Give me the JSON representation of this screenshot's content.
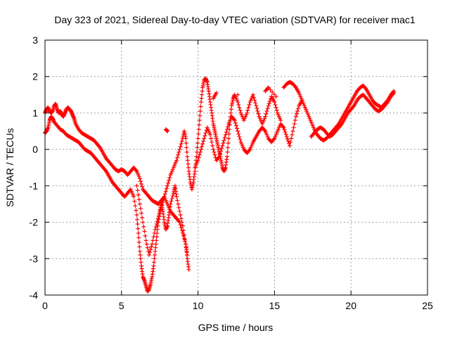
{
  "chart_data": {
    "type": "scatter",
    "title": "Day 323 of 2021, Sidereal Day-to-day VTEC variation (SDTVAR) for receiver mac1",
    "xlabel": "GPS time / hours",
    "ylabel": "SDTVAR / TECUs",
    "xlim": [
      0,
      25
    ],
    "ylim": [
      -4,
      3
    ],
    "xticks": [
      "0",
      "5",
      "10",
      "15",
      "20",
      "25"
    ],
    "yticks": [
      "-4",
      "-3",
      "-2",
      "-1",
      "0",
      "1",
      "2",
      "3"
    ],
    "grid": true,
    "marker": "+",
    "color": "#ff0000",
    "series": [
      {
        "points": [
          [
            0.0,
            1.0
          ],
          [
            0.1,
            1.1
          ],
          [
            0.2,
            1.15
          ],
          [
            0.3,
            1.05
          ],
          [
            0.4,
            1.0
          ],
          [
            0.5,
            1.05
          ],
          [
            0.6,
            1.2
          ],
          [
            0.7,
            1.25
          ],
          [
            0.8,
            1.1
          ],
          [
            0.9,
            1.0
          ],
          [
            1.0,
            1.05
          ],
          [
            1.1,
            0.95
          ],
          [
            1.2,
            0.9
          ],
          [
            1.3,
            1.0
          ],
          [
            1.4,
            1.1
          ],
          [
            1.5,
            1.15
          ],
          [
            1.6,
            1.1
          ],
          [
            1.7,
            1.05
          ],
          [
            1.8,
            0.95
          ],
          [
            1.9,
            0.85
          ],
          [
            2.0,
            0.7
          ],
          [
            2.2,
            0.55
          ],
          [
            2.4,
            0.45
          ],
          [
            2.6,
            0.4
          ],
          [
            2.8,
            0.35
          ],
          [
            3.0,
            0.3
          ],
          [
            3.2,
            0.25
          ],
          [
            3.4,
            0.15
          ],
          [
            3.6,
            0.05
          ],
          [
            3.8,
            -0.1
          ],
          [
            4.0,
            -0.25
          ],
          [
            4.2,
            -0.35
          ],
          [
            4.4,
            -0.45
          ],
          [
            4.6,
            -0.55
          ],
          [
            4.8,
            -0.6
          ],
          [
            5.0,
            -0.55
          ],
          [
            5.2,
            -0.6
          ],
          [
            5.4,
            -0.7
          ],
          [
            5.6,
            -0.6
          ],
          [
            5.8,
            -0.5
          ],
          [
            6.0,
            -0.6
          ],
          [
            6.2,
            -0.8
          ],
          [
            6.4,
            -1.1
          ],
          [
            6.6,
            -1.2
          ],
          [
            6.8,
            -1.3
          ],
          [
            7.0,
            -1.4
          ],
          [
            7.2,
            -1.45
          ],
          [
            7.4,
            -1.5
          ],
          [
            7.6,
            -1.4
          ],
          [
            7.8,
            -1.3
          ],
          [
            8.0,
            -1.5
          ],
          [
            8.2,
            -1.7
          ],
          [
            8.4,
            -1.8
          ],
          [
            8.6,
            -1.9
          ],
          [
            8.8,
            -2.0
          ],
          [
            9.0,
            -2.3
          ],
          [
            9.2,
            -2.6
          ],
          [
            9.3,
            -2.9
          ]
        ]
      },
      {
        "points": [
          [
            0.0,
            0.45
          ],
          [
            0.1,
            0.5
          ],
          [
            0.2,
            0.6
          ],
          [
            0.3,
            0.8
          ],
          [
            0.4,
            0.9
          ],
          [
            0.5,
            0.85
          ],
          [
            0.6,
            0.75
          ],
          [
            0.8,
            0.65
          ],
          [
            1.0,
            0.55
          ],
          [
            1.2,
            0.5
          ],
          [
            1.4,
            0.4
          ],
          [
            1.6,
            0.35
          ],
          [
            1.8,
            0.3
          ],
          [
            2.0,
            0.25
          ],
          [
            2.2,
            0.2
          ],
          [
            2.4,
            0.1
          ],
          [
            2.6,
            0.0
          ],
          [
            2.8,
            -0.05
          ],
          [
            3.0,
            -0.1
          ],
          [
            3.2,
            -0.2
          ],
          [
            3.4,
            -0.3
          ],
          [
            3.6,
            -0.4
          ],
          [
            3.8,
            -0.5
          ],
          [
            4.0,
            -0.6
          ],
          [
            4.2,
            -0.75
          ],
          [
            4.4,
            -0.9
          ],
          [
            4.6,
            -1.0
          ],
          [
            4.8,
            -1.1
          ],
          [
            5.0,
            -1.2
          ],
          [
            5.2,
            -1.3
          ],
          [
            5.4,
            -1.2
          ],
          [
            5.6,
            -1.1
          ],
          [
            5.8,
            -1.3
          ],
          [
            6.0,
            -1.8
          ],
          [
            6.1,
            -2.3
          ],
          [
            6.2,
            -2.8
          ],
          [
            6.3,
            -3.2
          ],
          [
            6.4,
            -3.5
          ],
          [
            6.5,
            -3.6
          ],
          [
            6.6,
            -3.75
          ],
          [
            6.7,
            -3.9
          ],
          [
            6.8,
            -3.85
          ],
          [
            6.9,
            -3.7
          ],
          [
            7.0,
            -3.5
          ],
          [
            7.1,
            -3.2
          ],
          [
            7.2,
            -2.8
          ],
          [
            7.3,
            -2.4
          ],
          [
            7.4,
            -2.0
          ],
          [
            7.5,
            -1.7
          ],
          [
            7.6,
            -1.5
          ],
          [
            7.7,
            -1.7
          ],
          [
            7.8,
            -2.0
          ],
          [
            7.9,
            -2.2
          ],
          [
            8.0,
            -2.1
          ],
          [
            8.1,
            -1.8
          ],
          [
            8.2,
            -1.5
          ],
          [
            8.4,
            -1.2
          ],
          [
            8.5,
            -1.0
          ],
          [
            8.6,
            -1.3
          ],
          [
            8.8,
            -1.7
          ],
          [
            9.0,
            -2.1
          ],
          [
            9.2,
            -2.6
          ],
          [
            9.3,
            -3.0
          ],
          [
            9.4,
            -3.3
          ]
        ]
      },
      {
        "points": [
          [
            6.0,
            -1.0
          ],
          [
            6.2,
            -1.5
          ],
          [
            6.4,
            -2.0
          ],
          [
            6.6,
            -2.5
          ],
          [
            6.8,
            -2.9
          ],
          [
            7.0,
            -2.6
          ],
          [
            7.2,
            -2.2
          ],
          [
            7.4,
            -1.9
          ],
          [
            7.6,
            -1.6
          ],
          [
            7.8,
            -1.3
          ],
          [
            8.0,
            -1.0
          ],
          [
            8.2,
            -0.7
          ],
          [
            8.4,
            -0.5
          ],
          [
            8.6,
            -0.3
          ],
          [
            8.8,
            0.0
          ],
          [
            9.0,
            0.3
          ],
          [
            9.1,
            0.5
          ],
          [
            9.2,
            0.3
          ],
          [
            9.3,
            -0.2
          ],
          [
            9.4,
            -0.6
          ],
          [
            9.5,
            -0.9
          ],
          [
            9.6,
            -1.1
          ],
          [
            9.7,
            -0.9
          ],
          [
            9.8,
            -0.6
          ],
          [
            9.9,
            -0.2
          ],
          [
            10.0,
            0.3
          ],
          [
            10.1,
            0.8
          ],
          [
            10.2,
            1.3
          ],
          [
            10.3,
            1.7
          ],
          [
            10.4,
            1.9
          ],
          [
            10.5,
            1.95
          ],
          [
            10.6,
            1.85
          ],
          [
            10.7,
            1.6
          ],
          [
            10.8,
            1.3
          ],
          [
            10.9,
            1.0
          ],
          [
            11.0,
            0.7
          ],
          [
            11.1,
            0.5
          ],
          [
            11.2,
            0.3
          ],
          [
            11.3,
            0.1
          ],
          [
            11.4,
            -0.1
          ],
          [
            11.5,
            -0.3
          ],
          [
            11.6,
            -0.5
          ],
          [
            11.7,
            -0.6
          ],
          [
            11.8,
            -0.5
          ],
          [
            11.9,
            -0.2
          ],
          [
            12.0,
            0.3
          ],
          [
            12.1,
            0.8
          ],
          [
            12.2,
            1.2
          ],
          [
            12.3,
            1.4
          ],
          [
            12.4,
            1.5
          ],
          [
            12.6,
            1.3
          ],
          [
            12.8,
            1.0
          ],
          [
            13.0,
            0.8
          ],
          [
            13.2,
            1.0
          ],
          [
            13.4,
            1.3
          ],
          [
            13.6,
            1.5
          ],
          [
            13.8,
            1.2
          ],
          [
            14.0,
            0.9
          ],
          [
            14.2,
            0.7
          ],
          [
            14.4,
            0.9
          ],
          [
            14.6,
            1.2
          ],
          [
            14.8,
            1.45
          ],
          [
            15.0,
            1.3
          ],
          [
            15.2,
            1.0
          ],
          [
            15.4,
            0.8
          ]
        ]
      },
      {
        "points": [
          [
            9.8,
            -0.5
          ],
          [
            10.0,
            -0.3
          ],
          [
            10.2,
            0.0
          ],
          [
            10.4,
            0.3
          ],
          [
            10.6,
            0.6
          ],
          [
            10.8,
            0.4
          ],
          [
            11.0,
            0.0
          ],
          [
            11.2,
            -0.3
          ],
          [
            11.4,
            -0.2
          ],
          [
            11.6,
            0.1
          ],
          [
            11.8,
            0.4
          ],
          [
            12.0,
            0.7
          ],
          [
            12.2,
            0.9
          ],
          [
            12.4,
            0.8
          ],
          [
            12.6,
            0.5
          ],
          [
            12.8,
            0.2
          ],
          [
            13.0,
            0.0
          ],
          [
            13.2,
            -0.1
          ],
          [
            13.4,
            0.0
          ],
          [
            13.6,
            0.2
          ],
          [
            13.8,
            0.35
          ],
          [
            14.0,
            0.5
          ],
          [
            14.2,
            0.6
          ],
          [
            14.4,
            0.5
          ],
          [
            14.6,
            0.3
          ],
          [
            14.8,
            0.2
          ],
          [
            15.0,
            0.3
          ],
          [
            15.2,
            0.5
          ],
          [
            15.4,
            0.7
          ],
          [
            15.6,
            0.6
          ],
          [
            15.8,
            0.35
          ],
          [
            16.0,
            0.1
          ],
          [
            16.2,
            0.5
          ],
          [
            16.4,
            0.9
          ],
          [
            16.6,
            1.2
          ],
          [
            16.8,
            1.35
          ]
        ]
      },
      {
        "points": [
          [
            15.6,
            1.7
          ],
          [
            15.8,
            1.8
          ],
          [
            16.0,
            1.85
          ],
          [
            16.2,
            1.8
          ],
          [
            16.4,
            1.7
          ],
          [
            16.6,
            1.55
          ],
          [
            16.8,
            1.35
          ],
          [
            17.0,
            1.15
          ],
          [
            17.2,
            0.95
          ],
          [
            17.4,
            0.75
          ],
          [
            17.6,
            0.55
          ],
          [
            17.8,
            0.4
          ],
          [
            18.0,
            0.3
          ],
          [
            18.2,
            0.25
          ],
          [
            18.4,
            0.3
          ],
          [
            18.6,
            0.4
          ],
          [
            18.8,
            0.5
          ],
          [
            19.0,
            0.6
          ],
          [
            19.2,
            0.7
          ],
          [
            19.4,
            0.85
          ],
          [
            19.6,
            1.0
          ],
          [
            19.8,
            1.15
          ],
          [
            20.0,
            1.3
          ],
          [
            20.2,
            1.45
          ],
          [
            20.4,
            1.6
          ],
          [
            20.6,
            1.7
          ],
          [
            20.8,
            1.75
          ],
          [
            21.0,
            1.65
          ],
          [
            21.2,
            1.5
          ],
          [
            21.4,
            1.35
          ],
          [
            21.6,
            1.25
          ],
          [
            21.8,
            1.2
          ],
          [
            22.0,
            1.15
          ],
          [
            22.2,
            1.25
          ],
          [
            22.4,
            1.35
          ],
          [
            22.6,
            1.5
          ],
          [
            22.8,
            1.6
          ]
        ]
      },
      {
        "points": [
          [
            17.4,
            0.35
          ],
          [
            17.6,
            0.45
          ],
          [
            17.8,
            0.55
          ],
          [
            18.0,
            0.6
          ],
          [
            18.2,
            0.55
          ],
          [
            18.4,
            0.45
          ],
          [
            18.6,
            0.35
          ],
          [
            18.8,
            0.4
          ],
          [
            19.0,
            0.5
          ],
          [
            19.2,
            0.6
          ],
          [
            19.4,
            0.7
          ],
          [
            19.6,
            0.85
          ],
          [
            19.8,
            1.0
          ],
          [
            20.0,
            1.1
          ],
          [
            20.2,
            1.2
          ],
          [
            20.4,
            1.35
          ],
          [
            20.6,
            1.45
          ],
          [
            20.8,
            1.5
          ],
          [
            21.0,
            1.4
          ],
          [
            21.2,
            1.3
          ],
          [
            21.4,
            1.2
          ],
          [
            21.6,
            1.1
          ],
          [
            21.8,
            1.05
          ],
          [
            22.0,
            1.1
          ],
          [
            22.2,
            1.2
          ],
          [
            22.4,
            1.3
          ],
          [
            22.6,
            1.45
          ],
          [
            22.8,
            1.55
          ]
        ]
      },
      {
        "points": [
          [
            7.9,
            0.55
          ],
          [
            8.0,
            0.5
          ],
          [
            11.0,
            1.4
          ],
          [
            11.2,
            1.55
          ],
          [
            12.6,
            1.5
          ],
          [
            14.4,
            1.6
          ],
          [
            14.6,
            1.7
          ],
          [
            15.1,
            1.45
          ]
        ]
      }
    ]
  }
}
